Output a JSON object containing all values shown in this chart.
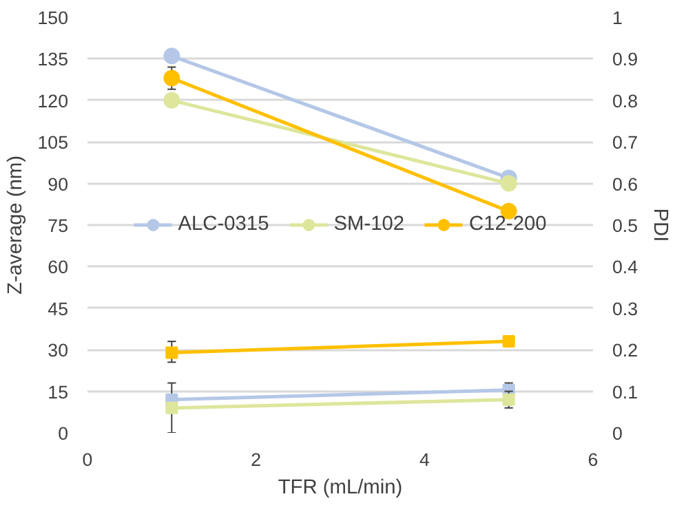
{
  "chart_data": {
    "type": "line",
    "xlabel": "TFR (mL/min)",
    "ylabel": "Z-average (nm)",
    "y2label": "PDI",
    "x": [
      1,
      5
    ],
    "xlim": [
      0,
      6
    ],
    "xticks": [
      0,
      2,
      4,
      6
    ],
    "ylim": [
      0,
      150
    ],
    "yticks": [
      0,
      15,
      30,
      45,
      60,
      75,
      90,
      105,
      120,
      135,
      150
    ],
    "y2lim": [
      0,
      1
    ],
    "y2ticks": [
      0,
      {
        "value": 0.1,
        "label": "0.1"
      },
      {
        "value": 0.2,
        "label": "0.2"
      },
      {
        "value": 0.3,
        "label": "0.3"
      },
      {
        "value": 0.4,
        "label": "0.4"
      },
      {
        "value": 0.5,
        "label": "0.5"
      },
      {
        "value": 0.6,
        "label": "0.6"
      },
      {
        "value": 0.7,
        "label": "0.7"
      },
      {
        "value": 0.8,
        "label": "0.8"
      },
      {
        "value": 0.9,
        "label": "0.9"
      },
      1
    ],
    "grid": "y",
    "legend": "center",
    "line_style": "solid",
    "series": [
      {
        "name": "ALC-0315",
        "color": "#b4c7e7",
        "values": [
          136,
          92
        ],
        "marker": "circle",
        "errors": [
          null,
          null
        ]
      },
      {
        "name": "SM-102",
        "color": "#dde69b",
        "values": [
          120,
          90
        ],
        "marker": "circle",
        "errors": [
          null,
          null
        ]
      },
      {
        "name": "C12-200",
        "color": "#ffc000",
        "values": [
          128,
          80
        ],
        "marker": "circle",
        "errors": [
          [
            124,
            132
          ],
          null
        ]
      },
      {
        "color": "#b4c7e7",
        "values": [
          0.08,
          0.103
        ],
        "axis": "y2",
        "marker": "square",
        "errors": [
          [
            0,
            0.12
          ],
          [
            0.09,
            0.12
          ]
        ]
      },
      {
        "color": "#dde69b",
        "values": [
          0.06,
          0.08
        ],
        "axis": "y2",
        "marker": "square",
        "errors": [
          null,
          [
            0.06,
            0.1
          ]
        ]
      },
      {
        "color": "#ffc000",
        "values": [
          0.193,
          0.22
        ],
        "axis": "y2",
        "marker": "square",
        "errors": [
          [
            0.17,
            0.22
          ],
          null
        ]
      }
    ]
  }
}
